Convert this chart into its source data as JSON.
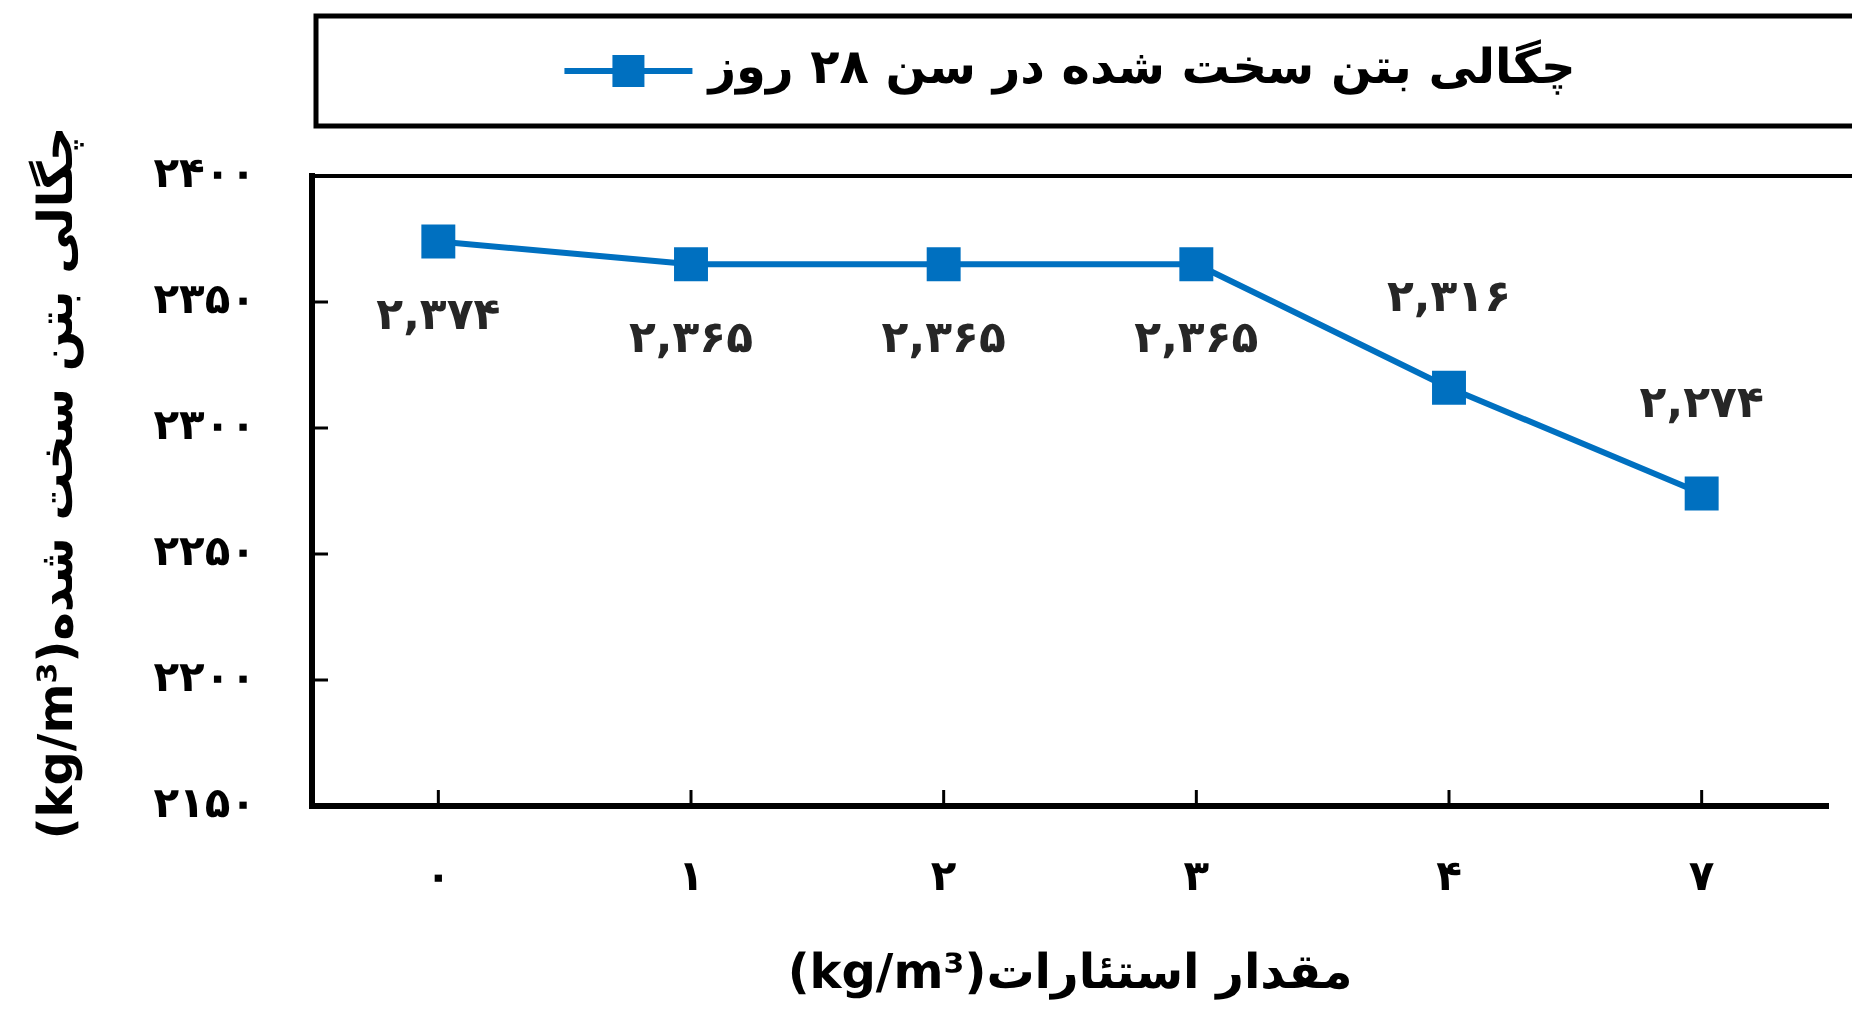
{
  "chart_data": {
    "type": "line",
    "categories": [
      "۰",
      "۱",
      "۲",
      "۳",
      "۴",
      "۷"
    ],
    "series": [
      {
        "name": "چگالی بتن سخت شده در سن ۲۸ روز",
        "color": "#0070c0",
        "values": [
          2374,
          2365,
          2365,
          2365,
          2316,
          2274
        ],
        "value_labels": [
          "۲,۳۷۴",
          "۲,۳۶۵",
          "۲,۳۶۵",
          "۲,۳۶۵",
          "۲,۳۱۶",
          "۲,۲۷۴"
        ]
      }
    ],
    "xlabel": "مقدار استئارات(kg/m³)",
    "ylabel": "چگالی بتن سخت شده(kg/m³)",
    "ylim": [
      2150,
      2400
    ],
    "yticks": [
      {
        "value": 2150,
        "label": "۲۱۵۰"
      },
      {
        "value": 2200,
        "label": "۲۲۰۰"
      },
      {
        "value": 2250,
        "label": "۲۲۵۰"
      },
      {
        "value": 2300,
        "label": "۲۳۰۰"
      },
      {
        "value": 2350,
        "label": "۲۳۵۰"
      },
      {
        "value": 2400,
        "label": "۲۴۰۰"
      }
    ],
    "legend": "top",
    "marker": "square"
  }
}
